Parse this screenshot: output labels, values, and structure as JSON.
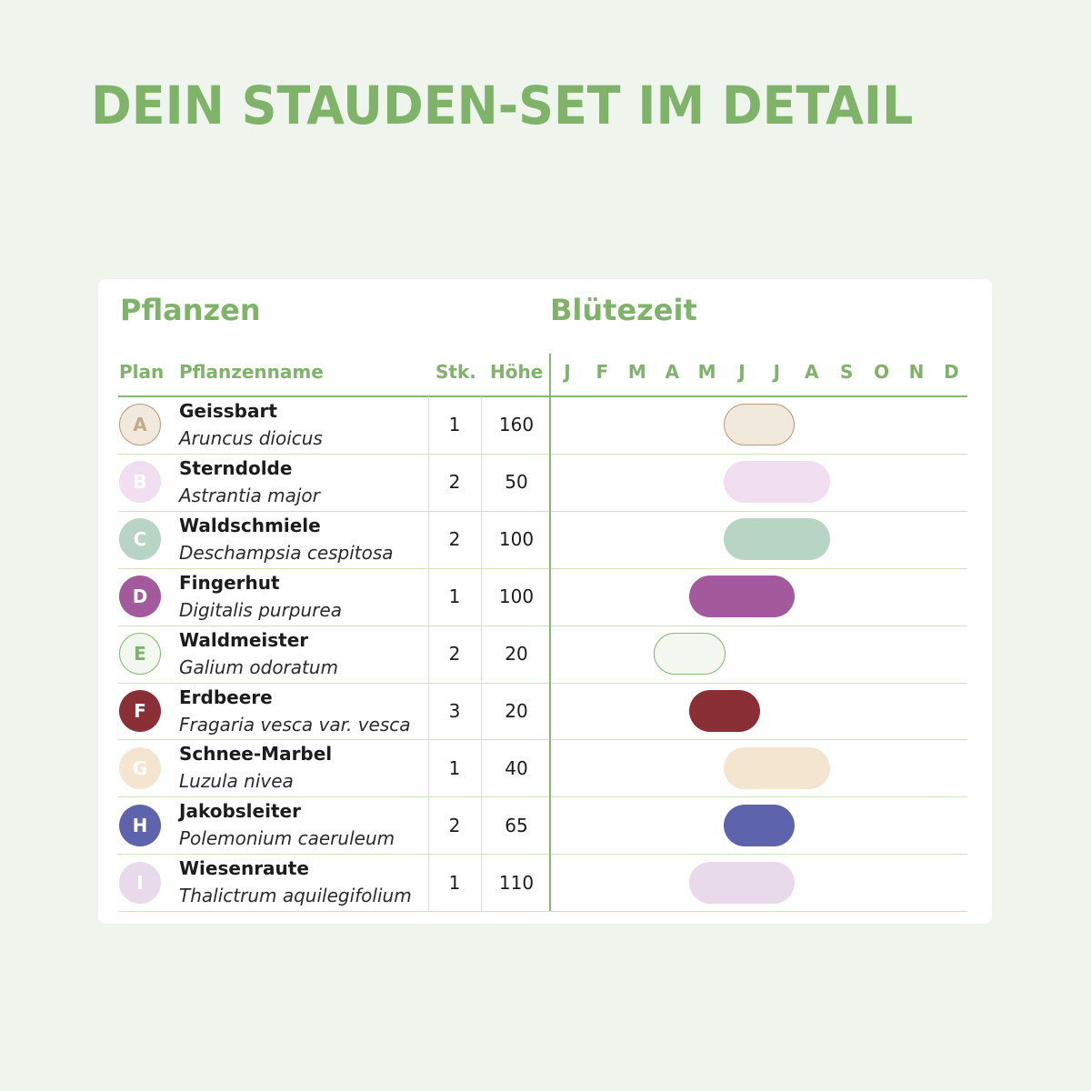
{
  "title": "DEIN STAUDEN-SET IM DETAIL",
  "sections": {
    "plants": "Pflanzen",
    "bloom": "Blütezeit"
  },
  "columns": {
    "plan": "Plan",
    "name": "Pflanzenname",
    "count": "Stk.",
    "height": "Höhe"
  },
  "months": [
    "J",
    "F",
    "M",
    "A",
    "M",
    "J",
    "J",
    "A",
    "S",
    "O",
    "N",
    "D"
  ],
  "chart_data": {
    "type": "table",
    "rows": [
      {
        "plan": "A",
        "name": "Geissbart",
        "latin": "Aruncus dioicus",
        "count": "1",
        "height": "160",
        "bloom_start": 6,
        "bloom_end": 7,
        "color": "#f2e9dd",
        "border": "#b89d7c",
        "text_color": "#c1ab8c"
      },
      {
        "plan": "B",
        "name": "Sterndolde",
        "latin": "Astrantia major",
        "count": "2",
        "height": "50",
        "bloom_start": 6,
        "bloom_end": 8,
        "color": "#f1dff1",
        "border": "",
        "text_color": "#ffffff"
      },
      {
        "plan": "C",
        "name": "Waldschmiele",
        "latin": "Deschampsia cespitosa",
        "count": "2",
        "height": "100",
        "bloom_start": 6,
        "bloom_end": 8,
        "color": "#b8d4c4",
        "border": "",
        "text_color": "#ffffff"
      },
      {
        "plan": "D",
        "name": "Fingerhut",
        "latin": "Digitalis purpurea",
        "count": "1",
        "height": "100",
        "bloom_start": 5,
        "bloom_end": 7,
        "color": "#a35a9c",
        "border": "",
        "text_color": "#ffffff"
      },
      {
        "plan": "E",
        "name": "Waldmeister",
        "latin": "Galium odoratum",
        "count": "2",
        "height": "20",
        "bloom_start": 4,
        "bloom_end": 5,
        "color": "#f2f8f0",
        "border": "#86b874",
        "text_color": "#7fb36a"
      },
      {
        "plan": "F",
        "name": "Erdbeere",
        "latin": "Fragaria vesca var. vesca",
        "count": "3",
        "height": "20",
        "bloom_start": 5,
        "bloom_end": 6,
        "color": "#8b2f37",
        "border": "",
        "text_color": "#ffffff"
      },
      {
        "plan": "G",
        "name": "Schnee-Marbel",
        "latin": "Luzula nivea",
        "count": "1",
        "height": "40",
        "bloom_start": 6,
        "bloom_end": 8,
        "color": "#f3e5cf",
        "border": "",
        "text_color": "#ffffff"
      },
      {
        "plan": "H",
        "name": "Jakobsleiter",
        "latin": "Polemonium caeruleum",
        "count": "2",
        "height": "65",
        "bloom_start": 6,
        "bloom_end": 7,
        "color": "#5e63ad",
        "border": "",
        "text_color": "#ffffff"
      },
      {
        "plan": "I",
        "name": "Wiesenraute",
        "latin": "Thalictrum aquilegifolium",
        "count": "1",
        "height": "110",
        "bloom_start": 5,
        "bloom_end": 7,
        "color": "#e8daeb",
        "border": "",
        "text_color": "#ffffff"
      }
    ]
  }
}
